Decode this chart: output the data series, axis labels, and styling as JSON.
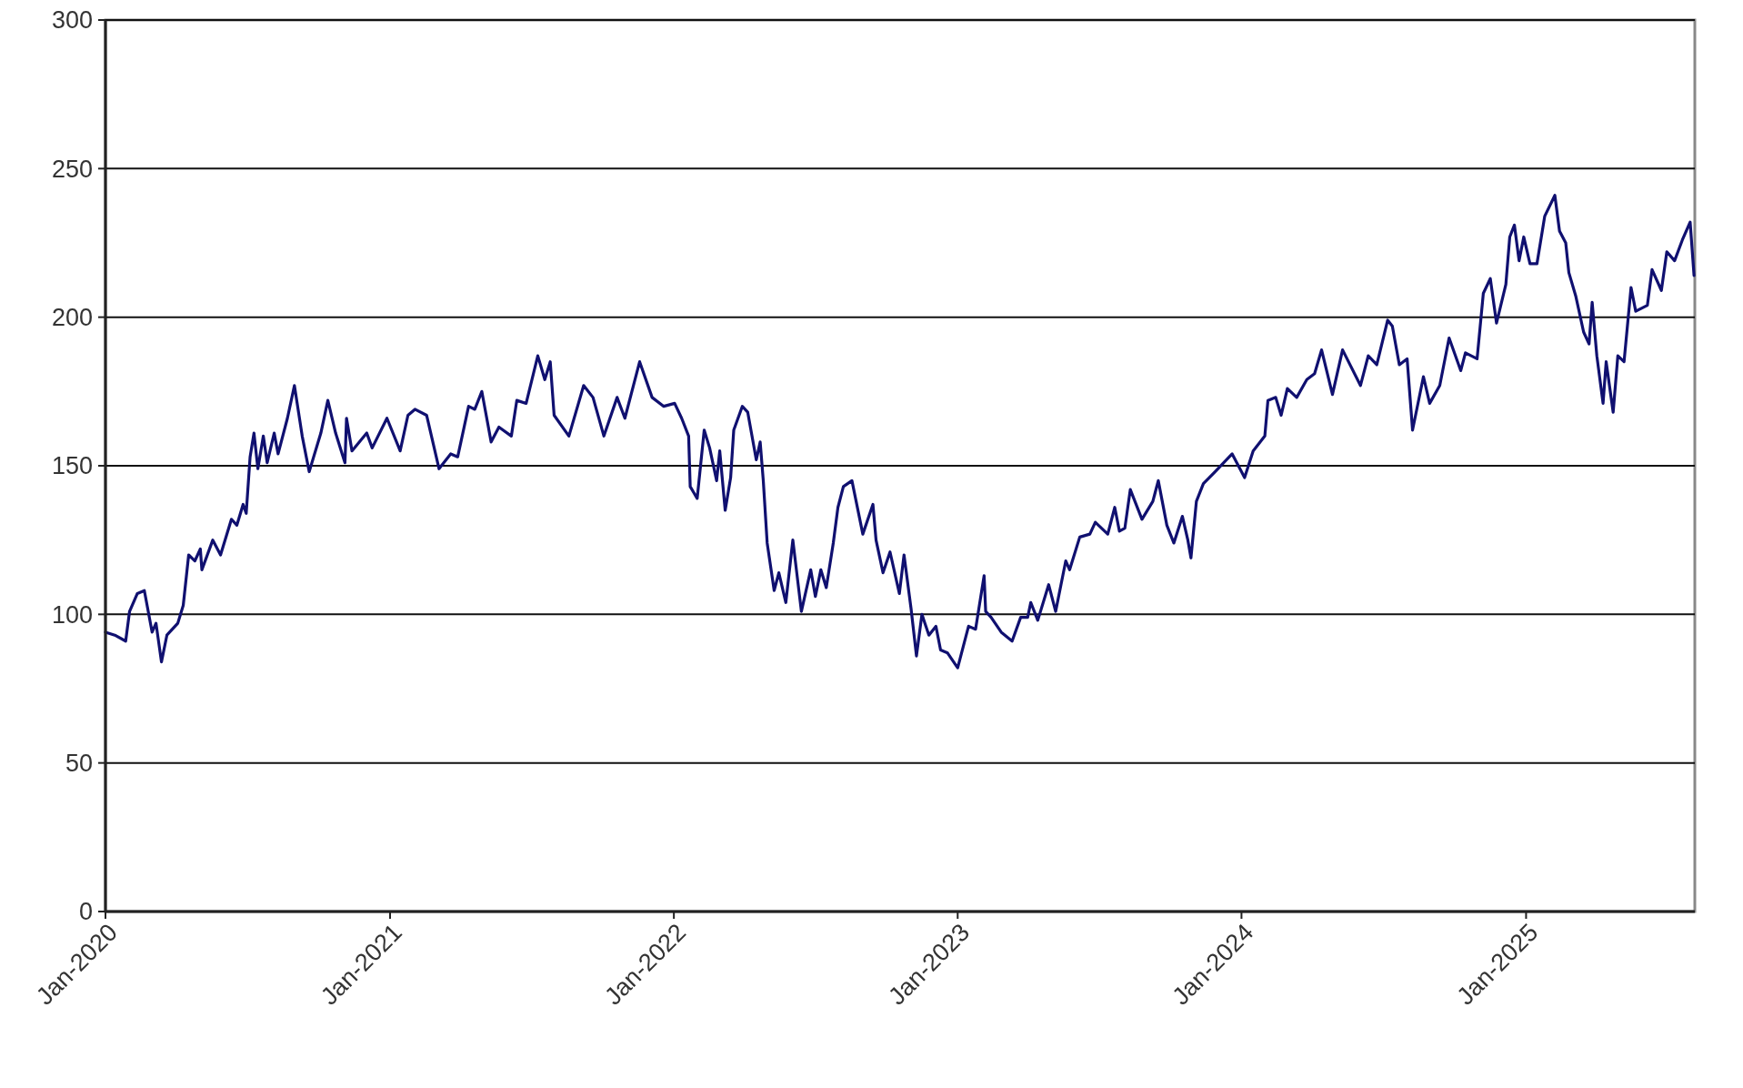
{
  "chart_data": {
    "type": "line",
    "grid": "y",
    "marker": "none",
    "line_style": "solid",
    "xlim": [
      "2020-01-01",
      "2025-08-06"
    ],
    "ylim": [
      0,
      300
    ],
    "yticks": [
      0,
      50,
      100,
      150,
      200,
      250,
      300
    ],
    "xticks": [
      {
        "value": "2020-01-01",
        "label": "Jan-2020"
      },
      {
        "value": "2021-01-01",
        "label": "Jan-2021"
      },
      {
        "value": "2022-01-01",
        "label": "Jan-2022"
      },
      {
        "value": "2023-01-01",
        "label": "Jan-2023"
      },
      {
        "value": "2024-01-01",
        "label": "Jan-2024"
      },
      {
        "value": "2025-01-01",
        "label": "Jan-2025"
      }
    ],
    "x": [
      "2020-01-01",
      "2020-01-13",
      "2020-01-27",
      "2020-02-01",
      "2020-02-11",
      "2020-02-20",
      "2020-03-01",
      "2020-03-06",
      "2020-03-13",
      "2020-03-20",
      "2020-04-03",
      "2020-04-10",
      "2020-04-17",
      "2020-04-25",
      "2020-05-02",
      "2020-05-04",
      "2020-05-18",
      "2020-05-28",
      "2020-06-11",
      "2020-06-18",
      "2020-06-26",
      "2020-06-30",
      "2020-07-05",
      "2020-07-10",
      "2020-07-15",
      "2020-07-22",
      "2020-07-27",
      "2020-08-05",
      "2020-08-10",
      "2020-08-22",
      "2020-08-31",
      "2020-09-10",
      "2020-09-19",
      "2020-10-04",
      "2020-10-13",
      "2020-10-23",
      "2020-11-04",
      "2020-11-06",
      "2020-11-13",
      "2020-12-02",
      "2020-12-09",
      "2020-12-28",
      "2021-01-14",
      "2021-01-24",
      "2021-02-02",
      "2021-02-17",
      "2021-03-05",
      "2021-03-20",
      "2021-03-29",
      "2021-04-12",
      "2021-04-20",
      "2021-04-29",
      "2021-05-11",
      "2021-05-21",
      "2021-06-06",
      "2021-06-13",
      "2021-06-25",
      "2021-07-10",
      "2021-07-19",
      "2021-07-26",
      "2021-07-31",
      "2021-08-19",
      "2021-09-07",
      "2021-09-19",
      "2021-10-03",
      "2021-10-20",
      "2021-10-30",
      "2021-11-18",
      "2021-12-04",
      "2021-12-19",
      "2022-01-02",
      "2022-01-11",
      "2022-01-20",
      "2022-01-22",
      "2022-01-31",
      "2022-02-09",
      "2022-02-16",
      "2022-02-25",
      "2022-03-01",
      "2022-03-08",
      "2022-03-15",
      "2022-03-19",
      "2022-03-30",
      "2022-04-06",
      "2022-04-17",
      "2022-04-22",
      "2022-04-26",
      "2022-05-01",
      "2022-05-10",
      "2022-05-16",
      "2022-05-25",
      "2022-06-03",
      "2022-06-14",
      "2022-06-26",
      "2022-07-02",
      "2022-07-09",
      "2022-07-16",
      "2022-07-25",
      "2022-07-31",
      "2022-08-07",
      "2022-08-18",
      "2022-09-01",
      "2022-09-14",
      "2022-09-18",
      "2022-09-27",
      "2022-10-06",
      "2022-10-18",
      "2022-10-24",
      "2022-11-02",
      "2022-11-09",
      "2022-11-16",
      "2022-11-25",
      "2022-12-04",
      "2022-12-10",
      "2022-12-19",
      "2023-01-01",
      "2023-01-15",
      "2023-01-24",
      "2023-02-04",
      "2023-02-06",
      "2023-02-13",
      "2023-02-26",
      "2023-03-12",
      "2023-03-23",
      "2023-04-01",
      "2023-04-05",
      "2023-04-14",
      "2023-04-28",
      "2023-05-07",
      "2023-05-20",
      "2023-05-25",
      "2023-06-07",
      "2023-06-20",
      "2023-06-27",
      "2023-07-13",
      "2023-07-22",
      "2023-07-28",
      "2023-08-04",
      "2023-08-11",
      "2023-08-26",
      "2023-09-09",
      "2023-09-16",
      "2023-09-27",
      "2023-10-06",
      "2023-10-17",
      "2023-10-24",
      "2023-10-28",
      "2023-11-04",
      "2023-11-13",
      "2023-11-28",
      "2023-12-20",
      "2024-01-05",
      "2024-01-16",
      "2024-01-31",
      "2024-02-04",
      "2024-02-14",
      "2024-02-21",
      "2024-02-29",
      "2024-03-12",
      "2024-03-25",
      "2024-04-04",
      "2024-04-13",
      "2024-04-27",
      "2024-05-10",
      "2024-06-02",
      "2024-06-12",
      "2024-06-23",
      "2024-07-07",
      "2024-07-13",
      "2024-07-22",
      "2024-08-01",
      "2024-08-08",
      "2024-08-22",
      "2024-08-30",
      "2024-09-12",
      "2024-09-24",
      "2024-10-09",
      "2024-10-15",
      "2024-10-30",
      "2024-11-07",
      "2024-11-16",
      "2024-11-24",
      "2024-12-06",
      "2024-12-11",
      "2024-12-17",
      "2024-12-23",
      "2024-12-29",
      "2025-01-06",
      "2025-01-15",
      "2025-01-25",
      "2025-02-07",
      "2025-02-13",
      "2025-02-21",
      "2025-02-25",
      "2025-03-06",
      "2025-03-16",
      "2025-03-23",
      "2025-03-27",
      "2025-04-02",
      "2025-04-10",
      "2025-04-14",
      "2025-04-23",
      "2025-04-29",
      "2025-05-07",
      "2025-05-16",
      "2025-05-22",
      "2025-06-06",
      "2025-06-12",
      "2025-06-24",
      "2025-07-01",
      "2025-07-11",
      "2025-07-21",
      "2025-07-31",
      "2025-08-05"
    ],
    "series": [
      {
        "color": "#101070",
        "values": [
          94,
          93,
          91,
          101,
          107,
          108,
          94,
          97,
          84,
          93,
          97,
          103,
          120,
          118,
          122,
          115,
          125,
          120,
          132,
          130,
          137,
          134,
          153,
          161,
          149,
          160,
          151,
          161,
          154,
          166,
          177,
          160,
          148,
          161,
          172,
          161,
          151,
          166,
          155,
          161,
          156,
          166,
          155,
          167,
          169,
          167,
          149,
          154,
          153,
          170,
          169,
          175,
          158,
          163,
          160,
          172,
          171,
          187,
          179,
          185,
          167,
          160,
          177,
          173,
          160,
          173,
          166,
          185,
          173,
          170,
          171,
          166,
          160,
          143,
          139,
          162,
          156,
          145,
          155,
          135,
          146,
          162,
          170,
          168,
          152,
          158,
          145,
          124,
          108,
          114,
          104,
          125,
          101,
          115,
          106,
          115,
          109,
          124,
          136,
          143,
          145,
          127,
          137,
          125,
          114,
          121,
          107,
          120,
          102,
          86,
          100,
          93,
          96,
          88,
          87,
          82,
          96,
          95,
          113,
          101,
          99,
          94,
          91,
          99,
          99,
          104,
          98,
          110,
          101,
          118,
          115,
          126,
          127,
          131,
          127,
          136,
          128,
          129,
          142,
          132,
          138,
          145,
          130,
          124,
          133,
          125,
          119,
          138,
          144,
          148,
          154,
          146,
          155,
          160,
          172,
          173,
          167,
          176,
          173,
          179,
          181,
          189,
          174,
          189,
          177,
          187,
          184,
          199,
          197,
          184,
          186,
          162,
          180,
          171,
          177,
          193,
          182,
          188,
          186,
          208,
          213,
          198,
          211,
          227,
          231,
          219,
          227,
          218,
          218,
          234,
          241,
          229,
          225,
          215,
          207,
          195,
          191,
          205,
          187,
          171,
          185,
          168,
          187,
          185,
          210,
          202,
          204,
          216,
          209,
          222,
          219,
          226,
          232,
          214
        ]
      }
    ]
  }
}
